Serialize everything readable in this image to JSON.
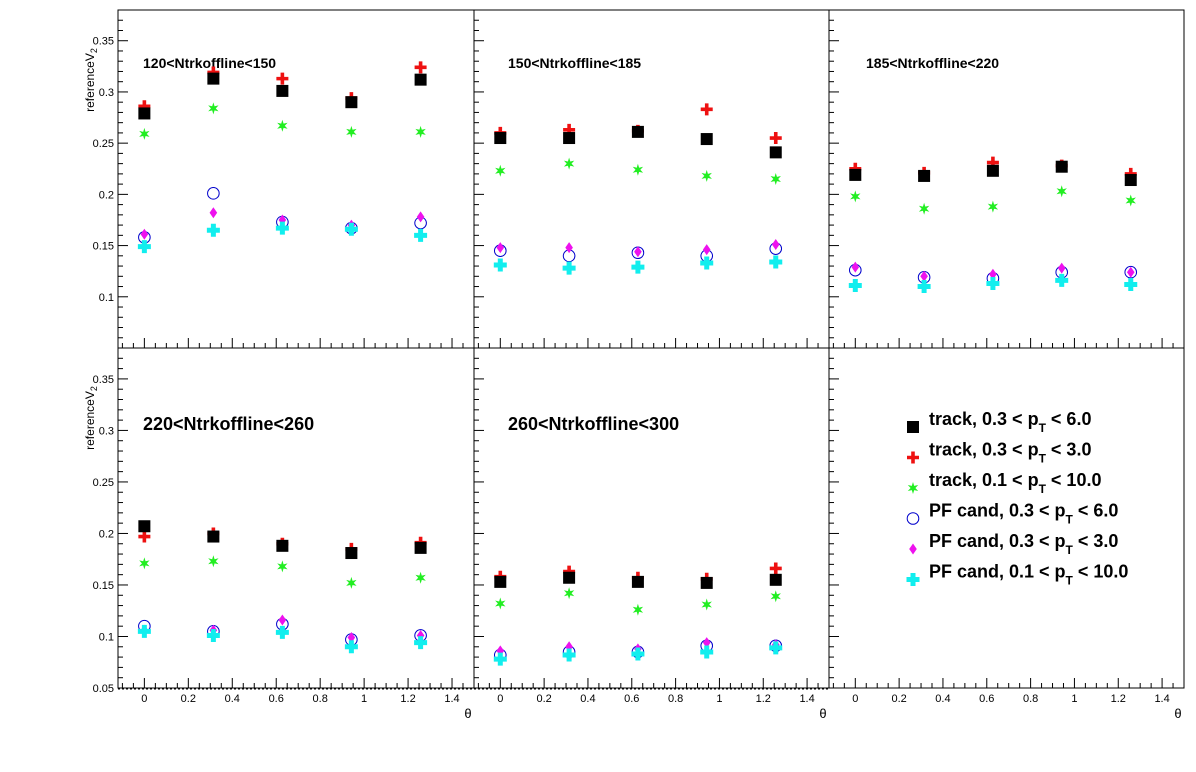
{
  "colors": {
    "track_0p3_6": "#000000",
    "track_0p3_3": "#ee1111",
    "track_0p1_10": "#22ee22",
    "pf_0p3_6": "#0000cc",
    "pf_0p3_3": "#ee11ee",
    "pf_0p1_10": "#11eeee"
  },
  "legend": {
    "entries": [
      {
        "key": "track_0p3_6",
        "pre": "track, 0.3 < p",
        "sub": "T",
        "post": " < 6.0",
        "marker": "square"
      },
      {
        "key": "track_0p3_3",
        "pre": "track, 0.3 < p",
        "sub": "T",
        "post": " < 3.0",
        "marker": "cross"
      },
      {
        "key": "track_0p1_10",
        "pre": "track, 0.1 < p",
        "sub": "T",
        "post": " < 10.0",
        "marker": "star"
      },
      {
        "key": "pf_0p3_6",
        "pre": "PF cand, 0.3 < p",
        "sub": "T",
        "post": " < 6.0",
        "marker": "circle"
      },
      {
        "key": "pf_0p3_3",
        "pre": "PF cand, 0.3 < p",
        "sub": "T",
        "post": " < 3.0",
        "marker": "diamond"
      },
      {
        "key": "pf_0p1_10",
        "pre": "PF cand, 0.1 < p",
        "sub": "T",
        "post": " < 10.0",
        "marker": "fatcross"
      }
    ]
  },
  "chart_data": [
    {
      "type": "scatter",
      "title": "120<Ntrkoffline<150",
      "ylabel_main": "referenceV",
      "ylabel_sub": "2",
      "xlabel": "",
      "xlim": [
        -0.12,
        1.5
      ],
      "ylim": [
        0.05,
        0.38
      ],
      "yticks": [
        0.1,
        0.15,
        0.2,
        0.25,
        0.3,
        0.35
      ],
      "xticks": [
        0,
        0.2,
        0.4,
        0.6,
        0.8,
        1,
        1.2,
        1.4
      ],
      "x": [
        0,
        0.314,
        0.628,
        0.942,
        1.257
      ],
      "series": [
        {
          "key": "track_0p3_6",
          "marker": "square",
          "values": [
            0.279,
            0.313,
            0.301,
            0.29,
            0.312
          ]
        },
        {
          "key": "track_0p3_3",
          "marker": "cross",
          "values": [
            0.286,
            0.319,
            0.313,
            0.294,
            0.324
          ]
        },
        {
          "key": "track_0p1_10",
          "marker": "star",
          "values": [
            0.259,
            0.284,
            0.267,
            0.261,
            0.261
          ]
        },
        {
          "key": "pf_0p3_6",
          "marker": "circle",
          "values": [
            0.158,
            0.201,
            0.173,
            0.167,
            0.172
          ]
        },
        {
          "key": "pf_0p3_3",
          "marker": "diamond",
          "values": [
            0.161,
            0.182,
            0.175,
            0.17,
            0.178
          ]
        },
        {
          "key": "pf_0p1_10",
          "marker": "fatcross",
          "values": [
            0.149,
            0.165,
            0.167,
            0.166,
            0.16
          ]
        }
      ]
    },
    {
      "type": "scatter",
      "title": "150<Ntrkoffline<185",
      "xlim": [
        -0.12,
        1.5
      ],
      "ylim": [
        0.05,
        0.38
      ],
      "x": [
        0,
        0.314,
        0.628,
        0.942,
        1.257
      ],
      "series": [
        {
          "key": "track_0p3_6",
          "marker": "square",
          "values": [
            0.255,
            0.255,
            0.261,
            0.254,
            0.241
          ]
        },
        {
          "key": "track_0p3_3",
          "marker": "cross",
          "values": [
            0.26,
            0.263,
            0.262,
            0.283,
            0.255
          ]
        },
        {
          "key": "track_0p1_10",
          "marker": "star",
          "values": [
            0.223,
            0.23,
            0.224,
            0.218,
            0.215
          ]
        },
        {
          "key": "pf_0p3_6",
          "marker": "circle",
          "values": [
            0.145,
            0.14,
            0.143,
            0.14,
            0.147
          ]
        },
        {
          "key": "pf_0p3_3",
          "marker": "diamond",
          "values": [
            0.148,
            0.148,
            0.144,
            0.146,
            0.151
          ]
        },
        {
          "key": "pf_0p1_10",
          "marker": "fatcross",
          "values": [
            0.131,
            0.128,
            0.129,
            0.133,
            0.134
          ]
        }
      ]
    },
    {
      "type": "scatter",
      "title": "185<Ntrkoffline<220",
      "xlim": [
        -0.12,
        1.5
      ],
      "ylim": [
        0.05,
        0.38
      ],
      "xticks": [
        0,
        0.2,
        0.4,
        0.6,
        0.8,
        1,
        1.2,
        1.4
      ],
      "x": [
        0,
        0.314,
        0.628,
        0.942,
        1.257
      ],
      "series": [
        {
          "key": "track_0p3_6",
          "marker": "square",
          "values": [
            0.219,
            0.218,
            0.223,
            0.227,
            0.214
          ]
        },
        {
          "key": "track_0p3_3",
          "marker": "cross",
          "values": [
            0.225,
            0.221,
            0.231,
            0.228,
            0.22
          ]
        },
        {
          "key": "track_0p1_10",
          "marker": "star",
          "values": [
            0.198,
            0.186,
            0.188,
            0.203,
            0.194
          ]
        },
        {
          "key": "pf_0p3_6",
          "marker": "circle",
          "values": [
            0.126,
            0.119,
            0.118,
            0.124,
            0.124
          ]
        },
        {
          "key": "pf_0p3_3",
          "marker": "diamond",
          "values": [
            0.129,
            0.12,
            0.122,
            0.128,
            0.124
          ]
        },
        {
          "key": "pf_0p1_10",
          "marker": "fatcross",
          "values": [
            0.111,
            0.11,
            0.113,
            0.116,
            0.112
          ]
        }
      ]
    },
    {
      "type": "scatter",
      "title": "220<Ntrkoffline<260",
      "ylabel_main": "referenceV",
      "ylabel_sub": "2",
      "xlabel": "θ",
      "xlim": [
        -0.12,
        1.5
      ],
      "ylim": [
        0.05,
        0.38
      ],
      "yticks": [
        0.05,
        0.1,
        0.15,
        0.2,
        0.25,
        0.3,
        0.35
      ],
      "xticks": [
        0,
        0.2,
        0.4,
        0.6,
        0.8,
        1,
        1.2,
        1.4
      ],
      "x": [
        0,
        0.314,
        0.628,
        0.942,
        1.257
      ],
      "series": [
        {
          "key": "track_0p3_6",
          "marker": "square",
          "values": [
            0.207,
            0.197,
            0.188,
            0.181,
            0.186
          ]
        },
        {
          "key": "track_0p3_3",
          "marker": "cross",
          "values": [
            0.197,
            0.2,
            0.19,
            0.185,
            0.191
          ]
        },
        {
          "key": "track_0p1_10",
          "marker": "star",
          "values": [
            0.171,
            0.173,
            0.168,
            0.152,
            0.157
          ]
        },
        {
          "key": "pf_0p3_6",
          "marker": "circle",
          "values": [
            0.11,
            0.105,
            0.112,
            0.097,
            0.101
          ]
        },
        {
          "key": "pf_0p3_3",
          "marker": "diamond",
          "values": [
            0.106,
            0.106,
            0.116,
            0.099,
            0.101
          ]
        },
        {
          "key": "pf_0p1_10",
          "marker": "fatcross",
          "values": [
            0.105,
            0.101,
            0.104,
            0.09,
            0.094
          ]
        }
      ]
    },
    {
      "type": "scatter",
      "title": "260<Ntrkoffline<300",
      "xlabel": "θ",
      "xlim": [
        -0.12,
        1.5
      ],
      "ylim": [
        0.05,
        0.38
      ],
      "xticks": [
        0,
        0.2,
        0.4,
        0.6,
        0.8,
        1,
        1.2,
        1.4
      ],
      "x": [
        0,
        0.314,
        0.628,
        0.942,
        1.257
      ],
      "series": [
        {
          "key": "track_0p3_6",
          "marker": "square",
          "values": [
            0.153,
            0.157,
            0.153,
            0.152,
            0.155
          ]
        },
        {
          "key": "track_0p3_3",
          "marker": "cross",
          "values": [
            0.158,
            0.163,
            0.157,
            0.156,
            0.166
          ]
        },
        {
          "key": "track_0p1_10",
          "marker": "star",
          "values": [
            0.132,
            0.142,
            0.126,
            0.131,
            0.139
          ]
        },
        {
          "key": "pf_0p3_6",
          "marker": "circle",
          "values": [
            0.082,
            0.085,
            0.085,
            0.091,
            0.091
          ]
        },
        {
          "key": "pf_0p3_3",
          "marker": "diamond",
          "values": [
            0.086,
            0.09,
            0.088,
            0.094,
            0.092
          ]
        },
        {
          "key": "pf_0p1_10",
          "marker": "fatcross",
          "values": [
            0.078,
            0.082,
            0.083,
            0.085,
            0.089
          ]
        }
      ]
    },
    {
      "type": "scatter",
      "title": "",
      "xlabel": "θ",
      "xlim": [
        -0.12,
        1.5
      ],
      "ylim": [
        0.05,
        0.38
      ],
      "xticks": [
        0,
        0.2,
        0.4,
        0.6,
        0.8,
        1,
        1.2,
        1.4
      ],
      "x": [],
      "series": []
    }
  ]
}
